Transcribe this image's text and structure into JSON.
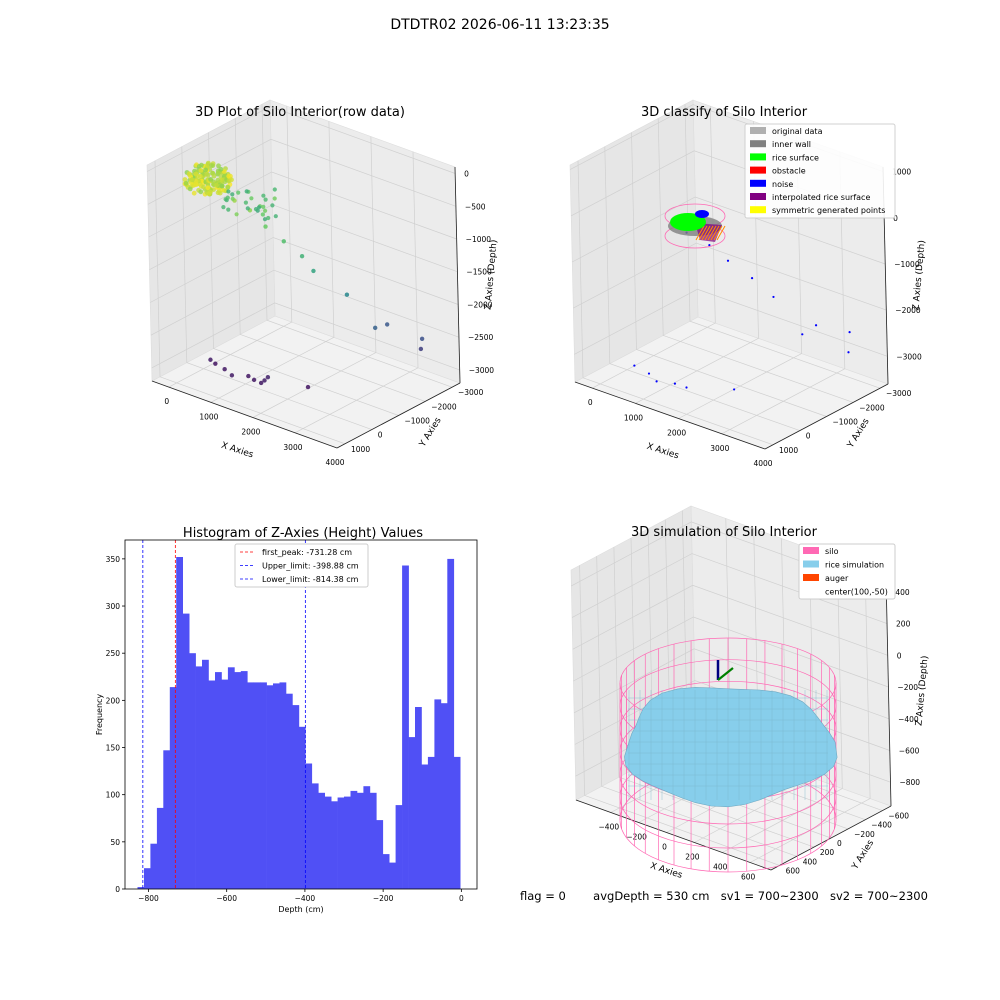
{
  "suptitle": "DTDTR02 2026-06-11 13:23:35",
  "footer": {
    "flag": "flag = 0",
    "avg_depth": "avgDepth = 530 cm",
    "sv1": "sv1 = 700~2300",
    "sv2": "sv2 = 700~2300"
  },
  "colors": {
    "hist_bar": "#5050f5",
    "peak_line": "#ff0000",
    "limit_line": "#0000ff",
    "silo": "#ff69b4",
    "rice": "#87ceeb",
    "auger": "#ff4500",
    "rice_surface": "#00ff00",
    "noise": "#0000ff",
    "obstacle": "#ff0000",
    "inner_wall": "#808080",
    "original": "#b0b0b0",
    "interpolated": "#800080",
    "symmetric": "#ffff00"
  },
  "chart_data": [
    {
      "type": "scatter",
      "title": "3D Plot of Silo Interior(row data)",
      "xlabel": "X Axies",
      "ylabel": "Y Axies",
      "zlabel": "Z Axies (Depth)",
      "x_ticks": [
        "0",
        "1000",
        "2000",
        "3000",
        "4000"
      ],
      "y_ticks": [
        "1000",
        "0",
        "−1000",
        "−2000",
        "−3000"
      ],
      "z_ticks": [
        "0",
        "−500",
        "−1000",
        "−1500",
        "−2000",
        "−2500",
        "−3000"
      ],
      "xlim": [
        -400,
        4000
      ],
      "ylim": [
        -3300,
        1300
      ],
      "zlim": [
        -3200,
        100
      ],
      "colormap": "viridis",
      "points": [
        {
          "x": 300,
          "y": 200,
          "z": -2950
        },
        {
          "x": 350,
          "y": 100,
          "z": -3020
        },
        {
          "x": 700,
          "y": 300,
          "z": -2980
        },
        {
          "x": 1000,
          "y": 500,
          "z": -2960
        },
        {
          "x": 1200,
          "y": 200,
          "z": -2990
        },
        {
          "x": 1400,
          "y": 300,
          "z": -2980
        },
        {
          "x": 1600,
          "y": 350,
          "z": -2970
        },
        {
          "x": 1650,
          "y": 300,
          "z": -2930
        },
        {
          "x": 1700,
          "y": 250,
          "z": -2880
        },
        {
          "x": 2300,
          "y": -300,
          "z": -3010
        },
        {
          "x": 3100,
          "y": -1600,
          "z": -2200
        },
        {
          "x": 3000,
          "y": -2200,
          "z": -2300
        },
        {
          "x": 3600,
          "y": -2500,
          "z": -2600
        },
        {
          "x": 3700,
          "y": -2400,
          "z": -2400
        },
        {
          "x": 2700,
          "y": -1200,
          "z": -1700
        },
        {
          "x": 2300,
          "y": -600,
          "z": -1300
        },
        {
          "x": 2100,
          "y": -500,
          "z": -1100
        },
        {
          "x": 1800,
          "y": -300,
          "z": -900
        },
        {
          "x": 1500,
          "y": -100,
          "z": -700
        },
        {
          "x": 1200,
          "y": 0,
          "z": -500
        },
        {
          "x": 900,
          "y": 100,
          "z": -400
        },
        {
          "x": 700,
          "y": 100,
          "z": -300
        }
      ],
      "cluster": {
        "x": 400,
        "y": 300,
        "z": -150
      }
    },
    {
      "type": "scatter",
      "title": "3D classify of Silo Interior",
      "xlabel": "X Axies",
      "ylabel": "Y Axies",
      "zlabel": "Z Axies (Depth)",
      "x_ticks": [
        "0",
        "1000",
        "2000",
        "3000",
        "4000"
      ],
      "y_ticks": [
        "1000",
        "0",
        "−1000",
        "−2000",
        "−3000"
      ],
      "z_ticks": [
        "1000",
        "0",
        "−1000",
        "−2000",
        "−3000"
      ],
      "xlim": [
        -400,
        4000
      ],
      "ylim": [
        -3300,
        1300
      ],
      "zlim": [
        -3600,
        1100
      ],
      "legend": [
        {
          "label": "original data",
          "color": "#b0b0b0"
        },
        {
          "label": "inner wall",
          "color": "#808080"
        },
        {
          "label": "rice surface",
          "color": "#00ff00"
        },
        {
          "label": "obstacle",
          "color": "#ff0000"
        },
        {
          "label": "noise",
          "color": "#0000ff"
        },
        {
          "label": "interpolated rice surface",
          "color": "#800080"
        },
        {
          "label": "symmetric generated points",
          "color": "#ffff00"
        }
      ],
      "legend_loc": "upper right",
      "noise_points": [
        {
          "x": 300,
          "y": 200,
          "z": -3350
        },
        {
          "x": 700,
          "y": 300,
          "z": -3360
        },
        {
          "x": 1000,
          "y": 500,
          "z": -3370
        },
        {
          "x": 1300,
          "y": 300,
          "z": -3380
        },
        {
          "x": 1600,
          "y": 350,
          "z": -3350
        },
        {
          "x": 2300,
          "y": -300,
          "z": -3360
        },
        {
          "x": 3100,
          "y": -1600,
          "z": -2300
        },
        {
          "x": 3300,
          "y": -1800,
          "z": -2100
        },
        {
          "x": 3600,
          "y": -2500,
          "z": -2800
        },
        {
          "x": 3700,
          "y": -2400,
          "z": -2300
        },
        {
          "x": 2700,
          "y": -1200,
          "z": -1500
        },
        {
          "x": 2400,
          "y": -900,
          "z": -1100
        },
        {
          "x": 2100,
          "y": -500,
          "z": -700
        },
        {
          "x": 1800,
          "y": -300,
          "z": -400
        },
        {
          "x": 1400,
          "y": -100,
          "z": -200
        }
      ],
      "cluster": {
        "x": 400,
        "y": 300,
        "z": 200
      }
    },
    {
      "type": "bar",
      "title": "Histogram of Z-Axies (Height) Values",
      "xlabel": "Depth (cm)",
      "ylabel": "Frequency",
      "xlim": [
        -860,
        40
      ],
      "ylim": [
        0,
        370
      ],
      "x_ticks": [
        -800,
        -600,
        -400,
        -200,
        0
      ],
      "y_ticks": [
        0,
        50,
        100,
        150,
        200,
        250,
        300,
        350
      ],
      "bin_start": -828,
      "bin_width": 16.5,
      "values": [
        2,
        22,
        48,
        86,
        147,
        214,
        352,
        292,
        250,
        236,
        243,
        221,
        230,
        222,
        235,
        230,
        231,
        219,
        219,
        219,
        216,
        218,
        219,
        207,
        195,
        172,
        133,
        112,
        102,
        98,
        93,
        97,
        98,
        104,
        102,
        109,
        102,
        73,
        37,
        28,
        89,
        343,
        161,
        193,
        132,
        140,
        201,
        197,
        350,
        140
      ],
      "legend": [
        {
          "label": "first_peak: -731.28 cm",
          "value": -731.28,
          "color": "#ff0000"
        },
        {
          "label": "Upper_limit: -398.88 cm",
          "value": -398.88,
          "color": "#0000ff"
        },
        {
          "label": "Lower_limit: -814.38 cm",
          "value": -814.38,
          "color": "#0000ff"
        }
      ],
      "legend_loc": "upper center"
    },
    {
      "type": "surface",
      "title": "3D simulation of Silo Interior",
      "xlabel": "X Axies",
      "ylabel": "Y Axies",
      "zlabel": "Z Axies (Depth)",
      "x_ticks": [
        "−400",
        "−200",
        "0",
        "200",
        "400",
        "600"
      ],
      "y_ticks": [
        "600",
        "400",
        "200",
        "0",
        "−200",
        "−400",
        "−600"
      ],
      "z_ticks": [
        "400",
        "200",
        "0",
        "−200",
        "−400",
        "−600",
        "−800"
      ],
      "xlim": [
        -650,
        750
      ],
      "ylim": [
        -700,
        700
      ],
      "zlim": [
        -950,
        500
      ],
      "silo_radius": 600,
      "silo_top": 200,
      "silo_bottom": -950,
      "surface_level": -450,
      "legend": [
        {
          "label": "silo",
          "color": "#ff69b4"
        },
        {
          "label": "rice simulation",
          "color": "#87ceeb"
        },
        {
          "label": "auger",
          "color": "#ff4500"
        },
        {
          "label": "center(100,-50)",
          "color": ""
        }
      ],
      "legend_loc": "upper right"
    }
  ]
}
